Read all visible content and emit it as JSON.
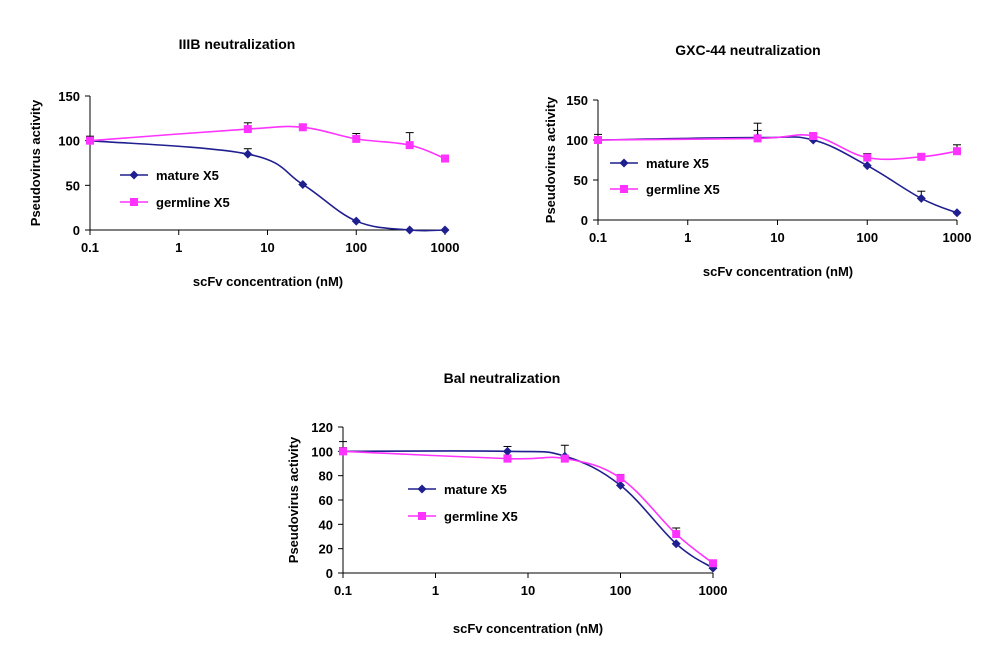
{
  "colors": {
    "mature": "#1f1f8f",
    "germline": "#ff33ff",
    "axis": "#000000"
  },
  "chart_data": [
    {
      "type": "line",
      "title": "IIIB neutralization",
      "xlabel": "scFv concentration (nM)",
      "ylabel": "Pseudovirus activity",
      "xscale": "log",
      "xlim": [
        0.1,
        1000
      ],
      "ylim": [
        0,
        150
      ],
      "xtick_labels": [
        "0.1",
        "1",
        "10",
        "100",
        "1000"
      ],
      "ytick_labels": [
        "0",
        "50",
        "100",
        "150"
      ],
      "legend_position": "center-left",
      "series": [
        {
          "name": "mature X5",
          "color_key": "mature",
          "marker": "diamond",
          "x": [
            0.1,
            6,
            25,
            100,
            400,
            1000
          ],
          "y": [
            100,
            85,
            51,
            10,
            0,
            0
          ],
          "err": [
            3,
            6,
            0,
            0,
            0,
            0
          ]
        },
        {
          "name": "germline X5",
          "color_key": "germline",
          "marker": "square",
          "x": [
            0.1,
            6,
            25,
            100,
            400,
            1000
          ],
          "y": [
            100,
            113,
            115,
            102,
            95,
            80
          ],
          "err": [
            5,
            7,
            3,
            6,
            14,
            3
          ]
        }
      ]
    },
    {
      "type": "line",
      "title": "GXC-44 neutralization",
      "xlabel": "scFv concentration (nM)",
      "ylabel": "Pseudovirus activity",
      "xscale": "log",
      "xlim": [
        0.1,
        1000
      ],
      "ylim": [
        0,
        150
      ],
      "xtick_labels": [
        "0.1",
        "1",
        "10",
        "100",
        "1000"
      ],
      "ytick_labels": [
        "0",
        "50",
        "100",
        "150"
      ],
      "legend_position": "center-left",
      "series": [
        {
          "name": "mature X5",
          "color_key": "mature",
          "marker": "diamond",
          "x": [
            0.1,
            6,
            25,
            100,
            400,
            1000
          ],
          "y": [
            100,
            103,
            100,
            68,
            27,
            9
          ],
          "err": [
            7,
            18,
            0,
            0,
            9,
            0
          ]
        },
        {
          "name": "germline X5",
          "color_key": "germline",
          "marker": "square",
          "x": [
            0.1,
            6,
            25,
            100,
            400,
            1000
          ],
          "y": [
            100,
            102,
            105,
            78,
            79,
            86
          ],
          "err": [
            3,
            10,
            3,
            5,
            3,
            8
          ]
        }
      ]
    },
    {
      "type": "line",
      "title": "Bal neutralization",
      "xlabel": "scFv concentration (nM)",
      "ylabel": "Pseudovirus activity",
      "xscale": "log",
      "xlim": [
        0.1,
        1000
      ],
      "ylim": [
        0,
        120
      ],
      "xtick_labels": [
        "0.1",
        "1",
        "10",
        "100",
        "1000"
      ],
      "ytick_labels": [
        "0",
        "20",
        "40",
        "60",
        "80",
        "100",
        "120"
      ],
      "legend_position": "center-left",
      "series": [
        {
          "name": "mature X5",
          "color_key": "mature",
          "marker": "diamond",
          "x": [
            0.1,
            6,
            25,
            100,
            400,
            1000
          ],
          "y": [
            100,
            100,
            96,
            72,
            24,
            4
          ],
          "err": [
            8,
            4,
            9,
            0,
            0,
            0
          ]
        },
        {
          "name": "germline X5",
          "color_key": "germline",
          "marker": "square",
          "x": [
            0.1,
            6,
            25,
            100,
            400,
            1000
          ],
          "y": [
            100,
            94,
            94,
            78,
            32,
            8
          ],
          "err": [
            3,
            3,
            0,
            3,
            5,
            0
          ]
        }
      ]
    }
  ]
}
